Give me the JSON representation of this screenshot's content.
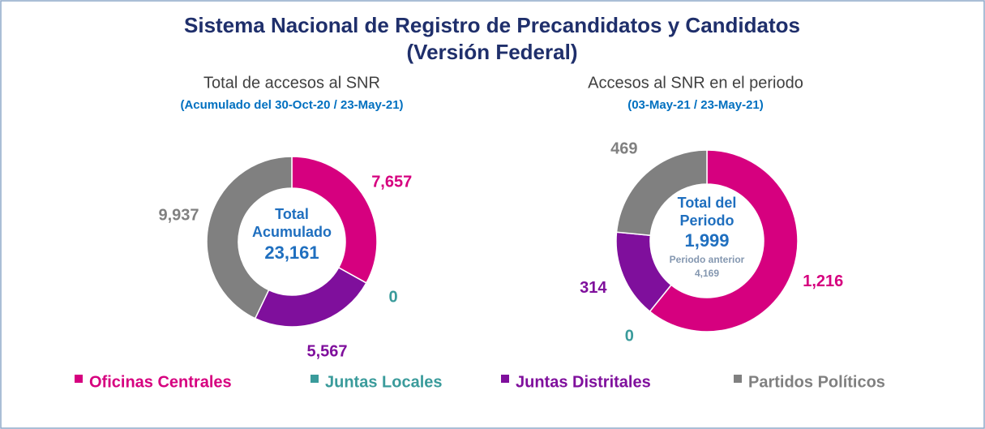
{
  "header": {
    "title": "Sistema Nacional de Registro de Precandidatos y Candidatos",
    "subtitle": "(Versión Federal)"
  },
  "chart_data": [
    {
      "type": "donut",
      "title": "Total de accesos al SNR",
      "subtitle": "(Acumulado del 30-Oct-20 / 23-May-21)",
      "categories": [
        "Oficinas Centrales",
        "Juntas Locales",
        "Juntas Distritales",
        "Partidos Políticos"
      ],
      "colors": [
        "#d6007f",
        "#3a9b9b",
        "#7f0f9c",
        "#808080"
      ],
      "values": [
        7657,
        0,
        5567,
        9937
      ],
      "value_labels": [
        "7,657",
        "0",
        "5,567",
        "9,937"
      ],
      "center_label": [
        "Total",
        "Acumulado"
      ],
      "center_value": 23161,
      "center_value_label": "23,161"
    },
    {
      "type": "donut",
      "title": "Accesos al SNR en el periodo",
      "subtitle": "(03-May-21 / 23-May-21)",
      "categories": [
        "Oficinas Centrales",
        "Juntas Locales",
        "Juntas Distritales",
        "Partidos Políticos"
      ],
      "colors": [
        "#d6007f",
        "#3a9b9b",
        "#7f0f9c",
        "#808080"
      ],
      "values": [
        1216,
        0,
        314,
        469
      ],
      "value_labels": [
        "1,216",
        "0",
        "314",
        "469"
      ],
      "center_label": [
        "Total del",
        "Periodo"
      ],
      "center_value": 1999,
      "center_value_label": "1,999",
      "previous_label": "Periodo anterior",
      "previous_value": 4169,
      "previous_value_label": "4,169"
    }
  ]
}
